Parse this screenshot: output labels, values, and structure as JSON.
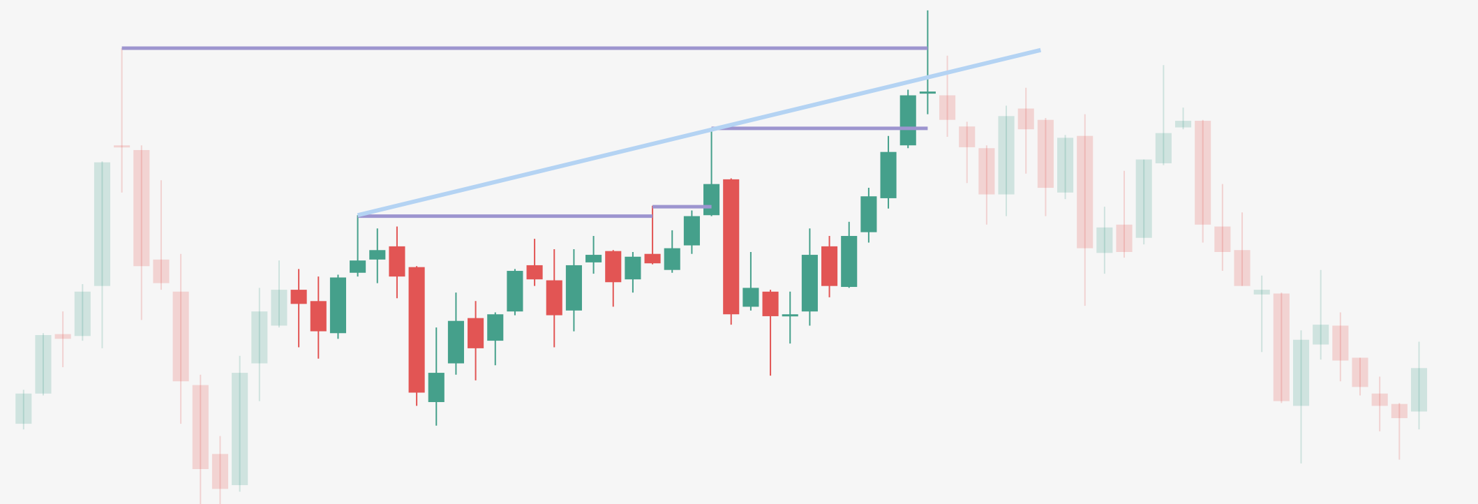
{
  "chart_data": {
    "type": "candlestick",
    "up_color": "#45a08b",
    "down_color": "#e25554",
    "highlight": [
      14,
      46
    ],
    "xlim": [
      -1.2,
      74
    ],
    "ylim": [
      0,
      534
    ],
    "series": {
      "open": [
        85,
        117,
        180,
        178,
        231,
        380,
        375,
        259,
        225,
        126,
        53,
        20,
        149,
        189,
        227,
        215,
        181,
        245,
        259,
        273,
        251,
        108,
        149,
        197,
        173,
        204,
        253,
        237,
        205,
        256,
        268,
        238,
        265,
        248,
        274,
        306,
        344,
        209,
        225,
        199,
        204,
        273,
        230,
        288,
        324,
        380,
        435,
        433,
        400,
        377,
        328,
        419,
        407,
        330,
        390,
        266,
        296,
        282,
        361,
        399,
        406,
        294,
        269,
        222,
        223,
        104,
        169,
        189,
        155,
        117,
        106,
        98
      ],
      "high": [
        121,
        181,
        204,
        233,
        363,
        483,
        380,
        343,
        265,
        137,
        72,
        157,
        229,
        258,
        249,
        241,
        243,
        306,
        292,
        294,
        252,
        187,
        224,
        215,
        203,
        249,
        281,
        270,
        270,
        284,
        269,
        267,
        316,
        290,
        311,
        398,
        345,
        267,
        227,
        225,
        292,
        284,
        299,
        335,
        390,
        439,
        523,
        475,
        405,
        380,
        422,
        441,
        409,
        391,
        413,
        315,
        353,
        365,
        465,
        420,
        407,
        339,
        309,
        242,
        224,
        184,
        248,
        203,
        155,
        135,
        107,
        172
      ],
      "low": [
        79,
        115,
        145,
        173,
        165,
        330,
        195,
        227,
        85,
        0,
        0,
        13,
        109,
        187,
        166,
        154,
        175,
        241,
        234,
        218,
        104,
        83,
        137,
        131,
        147,
        200,
        231,
        166,
        183,
        244,
        209,
        224,
        254,
        245,
        265,
        305,
        190,
        205,
        136,
        170,
        189,
        219,
        229,
        277,
        313,
        377,
        413,
        389,
        340,
        296,
        305,
        350,
        305,
        323,
        210,
        244,
        261,
        275,
        359,
        397,
        277,
        247,
        231,
        161,
        107,
        43,
        153,
        130,
        115,
        77,
        47,
        79
      ],
      "close": [
        117,
        179,
        175,
        225,
        362,
        378,
        252,
        234,
        130,
        37,
        16,
        139,
        204,
        227,
        212,
        183,
        240,
        258,
        269,
        241,
        118,
        139,
        194,
        165,
        201,
        247,
        238,
        200,
        253,
        264,
        235,
        262,
        255,
        271,
        305,
        339,
        201,
        229,
        199,
        201,
        264,
        231,
        284,
        326,
        373,
        433,
        437,
        407,
        378,
        328,
        411,
        397,
        335,
        388,
        271,
        293,
        267,
        365,
        393,
        406,
        296,
        267,
        231,
        227,
        109,
        174,
        190,
        152,
        124,
        104,
        91,
        144
      ]
    },
    "levels": [
      {
        "from": 5,
        "to": 46,
        "value": 483,
        "color": "#9d95cf"
      },
      {
        "from": 17,
        "to": 32,
        "value": 305,
        "color": "#9d95cf"
      },
      {
        "from": 32,
        "to": 35,
        "value": 315,
        "color": "#9d95cf"
      },
      {
        "from": 35,
        "to": 46,
        "value": 398,
        "color": "#9d95cf"
      }
    ],
    "trendline": {
      "x": [
        17,
        51.75
      ],
      "values": [
        306,
        481
      ],
      "color": "#b4d3f3"
    }
  }
}
